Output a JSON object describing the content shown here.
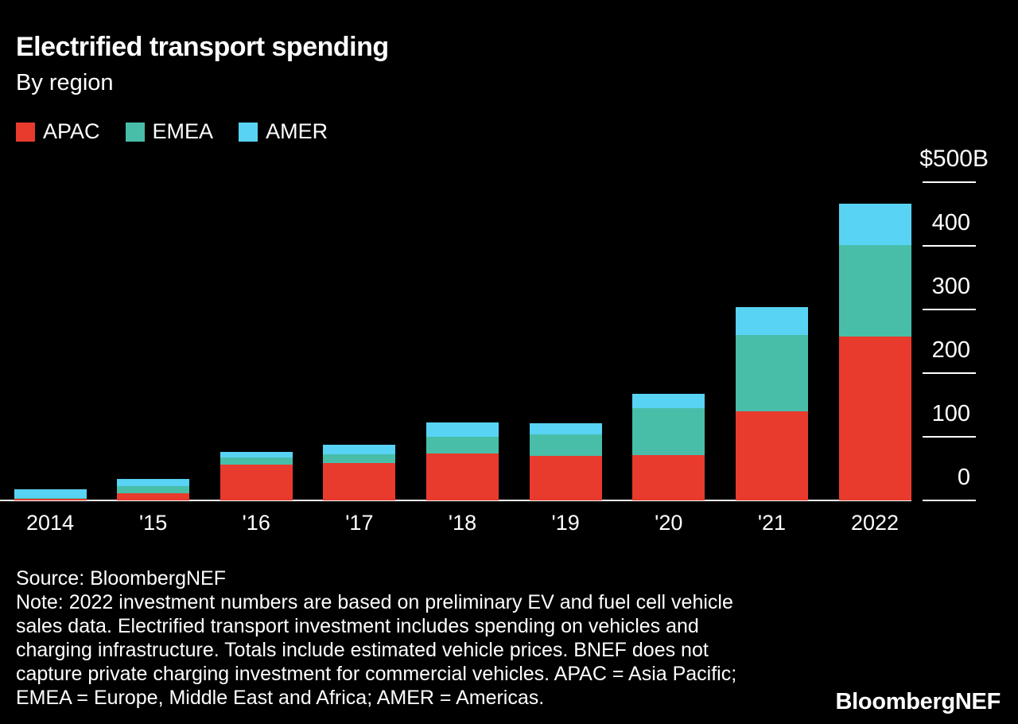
{
  "header": {
    "title": "Electrified transport spending",
    "subtitle": "By region"
  },
  "chart_data": {
    "type": "bar",
    "stacked": true,
    "title": "Electrified transport spending",
    "subtitle": "By region",
    "unit": "$B",
    "categories": [
      "2014",
      "'15",
      "'16",
      "'17",
      "'18",
      "'19",
      "'20",
      "'21",
      "2022"
    ],
    "series": [
      {
        "name": "APAC",
        "color": "#e83b2d",
        "values": [
          3,
          11,
          56,
          59,
          74,
          70,
          71,
          140,
          257
        ]
      },
      {
        "name": "EMEA",
        "color": "#48bea9",
        "values": [
          1,
          11,
          11,
          14,
          26,
          34,
          74,
          120,
          144
        ]
      },
      {
        "name": "AMER",
        "color": "#58d3f4",
        "values": [
          14,
          12,
          9,
          15,
          22,
          17,
          23,
          44,
          65
        ]
      }
    ],
    "totals": [
      18,
      34,
      76,
      88,
      122,
      121,
      168,
      304,
      466
    ],
    "yticks": [
      500,
      400,
      300,
      200,
      100,
      0
    ],
    "ytick_labels": [
      "$500B",
      "400",
      "300",
      "200",
      "100",
      "0"
    ],
    "ylim": [
      0,
      500
    ],
    "grid": false,
    "legend_position": "top-left",
    "axis_side": "right"
  },
  "footer": {
    "source": "Source: BloombergNEF",
    "note_lines": [
      "Note: 2022 investment numbers are based on preliminary EV and fuel cell vehicle",
      "sales data. Electrified transport investment includes spending on vehicles and",
      "charging infrastructure. Totals include estimated vehicle prices. BNEF does not",
      "capture private charging investment for commercial vehicles. APAC = Asia Pacific;",
      "EMEA = Europe, Middle East and Africa; AMER = Americas."
    ],
    "logo": "BloombergNEF"
  },
  "colors": {
    "background": "#000000",
    "text": "#ffffff",
    "apac": "#e83b2d",
    "emea": "#48bea9",
    "amer": "#58d3f4"
  }
}
